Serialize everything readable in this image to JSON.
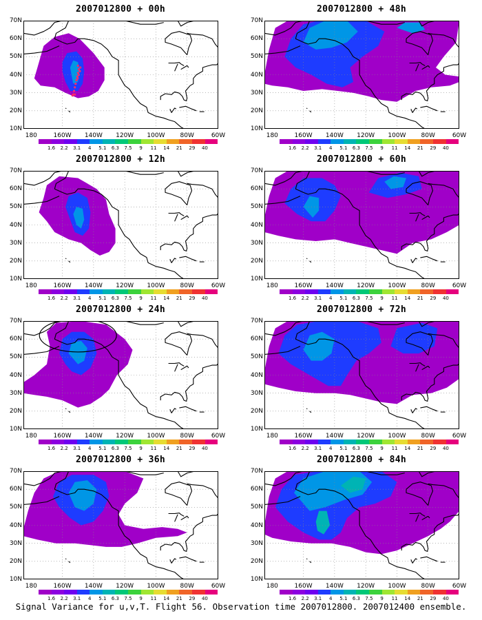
{
  "caption": "Signal Variance for u,v,T. Flight 56. Observation time 2007012800. 2007012400 ensemble.",
  "y_labels": [
    "70N",
    "60N",
    "50N",
    "40N",
    "30N",
    "20N",
    "10N"
  ],
  "x_labels": [
    "180",
    "160W",
    "140W",
    "120W",
    "100W",
    "80W",
    "60W"
  ],
  "colorbar_labels": [
    "1.6",
    "2.2",
    "3.1",
    "4",
    "5.1",
    "6.3",
    "7.5",
    "9",
    "11",
    "14",
    "21",
    "29",
    "40"
  ],
  "colorbar_colors": [
    "#a000c8",
    "#8c00e0",
    "#6e00f0",
    "#1e3cff",
    "#0096e6",
    "#00b4b4",
    "#00c878",
    "#3cd23c",
    "#a0e632",
    "#e6dc32",
    "#f0a020",
    "#f06428",
    "#f03232",
    "#e6007d"
  ],
  "panels": [
    {
      "title": "2007012800 + 00h",
      "markers": true,
      "circle": false
    },
    {
      "title": "2007012800 + 48h",
      "markers": false,
      "circle": false
    },
    {
      "title": "2007012800 + 12h",
      "markers": false,
      "circle": false
    },
    {
      "title": "2007012800 + 60h",
      "markers": false,
      "circle": false
    },
    {
      "title": "2007012800 + 24h",
      "markers": false,
      "circle": true
    },
    {
      "title": "2007012800 + 72h",
      "markers": false,
      "circle": false
    },
    {
      "title": "2007012800 + 36h",
      "markers": false,
      "circle": false
    },
    {
      "title": "2007012800 + 84h",
      "markers": false,
      "circle": false
    }
  ]
}
